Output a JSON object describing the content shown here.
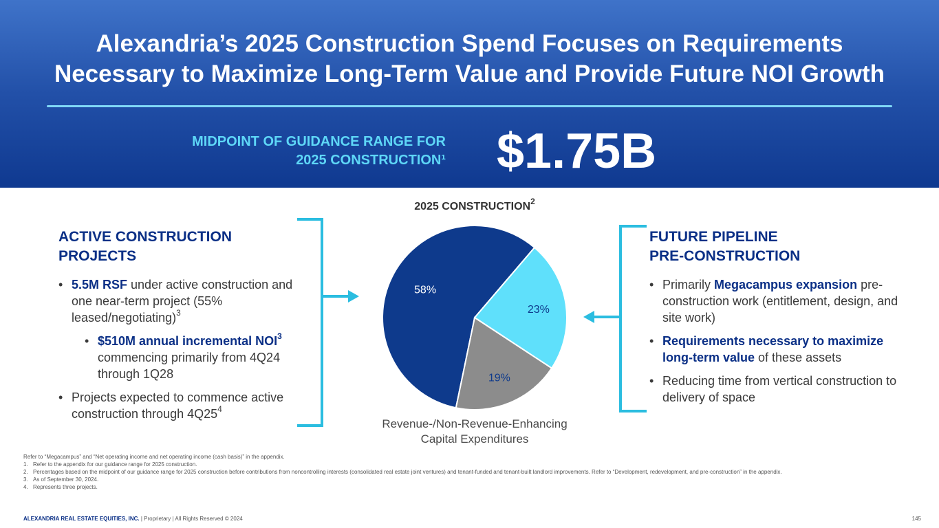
{
  "header": {
    "title_line1": "Alexandria’s 2025 Construction Spend Focuses on Requirements",
    "title_line2": "Necessary to Maximize Long-Term Value and Provide Future NOI Growth",
    "guidance_label_line1": "MIDPOINT OF GUIDANCE RANGE FOR",
    "guidance_label_line2": "2025 CONSTRUCTION¹",
    "guidance_value": "$1.75B"
  },
  "left": {
    "title_line1": "ACTIVE CONSTRUCTION",
    "title_line2": "PROJECTS",
    "b1_hl": "5.5M RSF",
    "b1_rest": " under active construction and one near-term project (55% leased/negotiating)",
    "b1_sup": "3",
    "b2_hl": "$510M annual incremental NOI",
    "b2_sup": "3",
    "b2_rest": " commencing primarily from 4Q24 through 1Q28",
    "b3_text": "Projects expected to commence active construction through 4Q25",
    "b3_sup": "4"
  },
  "right": {
    "title_line1": "FUTURE PIPELINE",
    "title_line2": "PRE-CONSTRUCTION",
    "b1_pre": "Primarily ",
    "b1_hl": "Megacampus expansion",
    "b1_rest": " pre-construction work (entitlement, design, and site work)",
    "b2_hl": "Requirements necessary to maximize long-term value",
    "b2_rest": " of these assets",
    "b3_text": "Reducing time from vertical construction to delivery of space"
  },
  "chart_data": {
    "type": "pie",
    "title": "2025 CONSTRUCTION",
    "title_sup": "2",
    "categories": [
      "Active Construction Projects",
      "Future Pipeline Pre-Construction",
      "Revenue-/Non-Revenue-Enhancing Capital Expenditures"
    ],
    "values": [
      58,
      23,
      19
    ],
    "labels": [
      "58%",
      "23%",
      "19%"
    ],
    "colors": [
      "#0e3a8c",
      "#5fe0fb",
      "#8c8c8c"
    ],
    "label_colors": [
      "#ffffff",
      "#0e3a8c",
      "#0e3a8c"
    ],
    "start_angle_deg": 40.5,
    "caption_line1": "Revenue-/Non-Revenue-Enhancing",
    "caption_line2": "Capital Expenditures"
  },
  "colors": {
    "accent_cyan": "#2bbde0",
    "navy": "#0a2f86"
  },
  "footnotes": {
    "intro": "Refer to “Megacampus” and “Net operating income and net operating income (cash basis)” in the appendix.",
    "items": [
      {
        "num": "1.",
        "text": "Refer to the appendix for our guidance range for 2025 construction."
      },
      {
        "num": "2.",
        "text": "Percentages based on the midpoint of our guidance range for 2025 construction before contributions from noncontrolling interests (consolidated real estate joint ventures) and tenant-funded and tenant-built landlord improvements. Refer to “Development, redevelopment, and pre-construction” in the appendix."
      },
      {
        "num": "3.",
        "text": "As of September 30, 2024."
      },
      {
        "num": "4.",
        "text": "Represents three projects."
      }
    ]
  },
  "footer": {
    "company": "ALEXANDRIA REAL ESTATE EQUITIES, INC.",
    "rights": " | Proprietary | All Rights Reserved © 2024",
    "page": "145"
  }
}
